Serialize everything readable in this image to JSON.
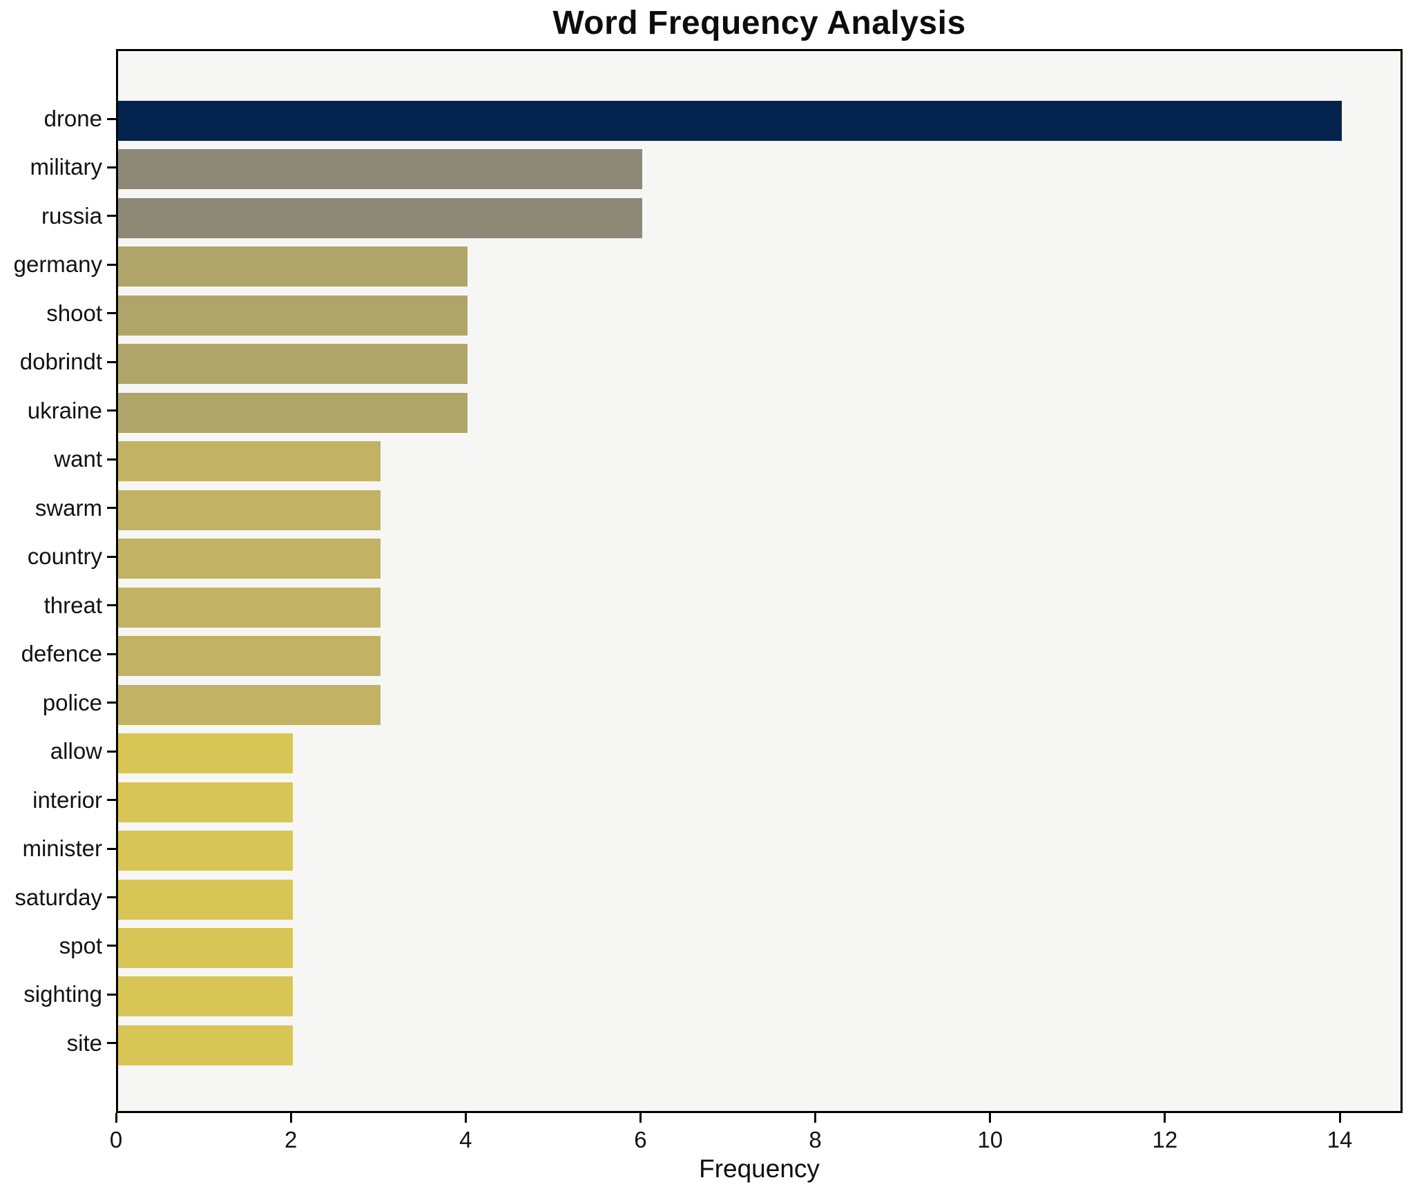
{
  "chart_data": {
    "type": "bar",
    "orientation": "horizontal",
    "title": "Word Frequency Analysis",
    "xlabel": "Frequency",
    "ylabel": "",
    "x_ticks": [
      0,
      2,
      4,
      6,
      8,
      10,
      12,
      14
    ],
    "xlim": [
      0,
      14.72
    ],
    "grid": false,
    "legend_position": "none",
    "categories": [
      "drone",
      "military",
      "russia",
      "germany",
      "shoot",
      "dobrindt",
      "ukraine",
      "want",
      "swarm",
      "country",
      "threat",
      "defence",
      "police",
      "allow",
      "interior",
      "minister",
      "saturday",
      "spot",
      "sighting",
      "site"
    ],
    "values": [
      14,
      6,
      6,
      4,
      4,
      4,
      4,
      3,
      3,
      3,
      3,
      3,
      3,
      2,
      2,
      2,
      2,
      2,
      2,
      2
    ],
    "bar_colors": [
      "#02234d",
      "#8e8977",
      "#8e8977",
      "#b0a568",
      "#b0a568",
      "#b0a568",
      "#b0a568",
      "#c2b264",
      "#c2b264",
      "#c2b264",
      "#c2b264",
      "#c2b264",
      "#c2b264",
      "#d7c556",
      "#d7c556",
      "#d7c556",
      "#d7c556",
      "#d7c556",
      "#d7c556",
      "#d7c556"
    ],
    "colors": {
      "figure_background": "#ffffff",
      "plot_background": "#f6f6f5",
      "spine": "#000000",
      "text": "#0d0d0d"
    }
  }
}
